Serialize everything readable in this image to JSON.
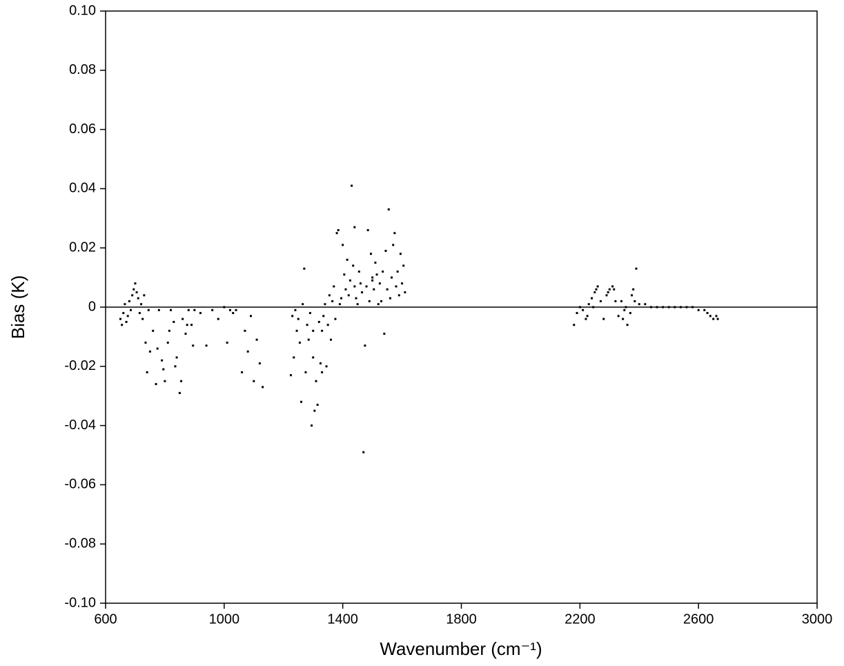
{
  "chart_data": {
    "type": "scatter",
    "x_label": "Wavenumber (cm⁻¹)",
    "y_label": "Bias (K)",
    "x": [
      650,
      655,
      660,
      665,
      670,
      675,
      680,
      685,
      690,
      695,
      700,
      705,
      710,
      715,
      720,
      725,
      730,
      735,
      740,
      745,
      750,
      760,
      770,
      780,
      790,
      800,
      810,
      820,
      830,
      840,
      850,
      860,
      870,
      880,
      890,
      900,
      920,
      940,
      960,
      980,
      1000,
      1010,
      1020,
      1030,
      1040,
      1060,
      1070,
      1080,
      1090,
      1100,
      1110,
      1120,
      1130,
      775,
      795,
      815,
      835,
      855,
      875,
      895,
      1225,
      1230,
      1235,
      1240,
      1245,
      1250,
      1255,
      1260,
      1265,
      1270,
      1275,
      1280,
      1285,
      1290,
      1295,
      1300,
      1305,
      1310,
      1315,
      1320,
      1325,
      1330,
      1335,
      1340,
      1345,
      1350,
      1355,
      1360,
      1365,
      1370,
      1375,
      1380,
      1385,
      1390,
      1395,
      1400,
      1405,
      1410,
      1415,
      1420,
      1425,
      1430,
      1435,
      1440,
      1445,
      1450,
      1455,
      1460,
      1465,
      1470,
      1475,
      1480,
      1485,
      1490,
      1495,
      1500,
      1505,
      1510,
      1515,
      1520,
      1525,
      1530,
      1535,
      1540,
      1545,
      1550,
      1555,
      1560,
      1565,
      1570,
      1575,
      1580,
      1585,
      1590,
      1595,
      1600,
      1605,
      1610,
      1440,
      1500,
      2180,
      2190,
      2200,
      2210,
      2220,
      2230,
      2240,
      2250,
      2260,
      2270,
      2280,
      2290,
      2300,
      2310,
      2320,
      2330,
      2340,
      2350,
      2360,
      2370,
      2375,
      2380,
      2385,
      2390,
      2400,
      2420,
      2440,
      2460,
      2480,
      2500,
      2520,
      2540,
      2560,
      2580,
      2600,
      2620,
      2630,
      2640,
      2650,
      2660,
      2665,
      2225,
      2245,
      2255,
      2295,
      2315,
      2345,
      2355,
      1300,
      1330
    ],
    "values": [
      -0.004,
      -0.006,
      -0.002,
      0.001,
      -0.005,
      -0.003,
      0.002,
      -0.001,
      0.004,
      0.006,
      0.008,
      0.005,
      0.003,
      -0.002,
      0.001,
      -0.004,
      0.004,
      -0.012,
      -0.022,
      -0.001,
      -0.015,
      -0.008,
      -0.026,
      -0.001,
      -0.018,
      -0.025,
      -0.012,
      -0.001,
      -0.005,
      -0.017,
      -0.029,
      -0.004,
      -0.009,
      -0.001,
      -0.006,
      -0.001,
      -0.002,
      -0.013,
      -0.001,
      -0.004,
      0,
      -0.012,
      -0.001,
      -0.002,
      -0.001,
      -0.022,
      -0.008,
      -0.015,
      -0.003,
      -0.025,
      -0.011,
      -0.019,
      -0.027,
      -0.014,
      -0.021,
      -0.008,
      -0.02,
      -0.025,
      -0.006,
      -0.013,
      -0.023,
      -0.003,
      -0.017,
      -0.001,
      -0.008,
      -0.004,
      -0.012,
      -0.032,
      0.001,
      0.013,
      -0.022,
      -0.006,
      -0.011,
      -0.002,
      -0.04,
      -0.017,
      -0.035,
      -0.025,
      -0.033,
      -0.005,
      -0.019,
      -0.008,
      -0.003,
      0.001,
      -0.02,
      -0.006,
      0.004,
      -0.011,
      0.002,
      0.007,
      -0.004,
      0.025,
      0.026,
      0.001,
      0.003,
      0.021,
      0.011,
      0.006,
      0.016,
      0.004,
      0.009,
      0.041,
      0.014,
      0.007,
      0.003,
      0.001,
      0.012,
      0.008,
      0.005,
      -0.049,
      -0.013,
      0.007,
      0.026,
      0.002,
      0.018,
      0.009,
      0.006,
      0.015,
      0.011,
      0.001,
      0.008,
      0.002,
      0.012,
      -0.009,
      0.019,
      0.006,
      0.033,
      0.003,
      0.01,
      0.021,
      0.025,
      0.007,
      0.012,
      0.004,
      0.018,
      0.008,
      0.014,
      0.005,
      0.027,
      0.01,
      -0.006,
      -0.002,
      0,
      -0.001,
      -0.004,
      0.001,
      0.003,
      0.005,
      0.007,
      0.002,
      -0.004,
      0.004,
      0.006,
      0.007,
      0.002,
      -0.003,
      0.002,
      -0.001,
      -0.006,
      -0.002,
      0.004,
      0.006,
      0.002,
      0.013,
      0.001,
      0.001,
      0,
      0,
      0,
      0,
      0,
      0,
      0,
      0,
      -0.001,
      -0.001,
      -0.002,
      -0.003,
      -0.004,
      -0.003,
      -0.004,
      -0.003,
      0,
      0.006,
      0.005,
      0.006,
      -0.004,
      0,
      -0.008,
      -0.022
    ],
    "color": "#000000",
    "xlim": [
      600,
      3000
    ],
    "xticks": [
      600,
      1000,
      1400,
      1800,
      2200,
      2600,
      3000
    ],
    "ylim": [
      -0.1,
      0.1
    ],
    "yticks": [
      {
        "value": -0.1,
        "label": "-0.10"
      },
      -0.08,
      -0.06,
      -0.04,
      -0.02,
      0,
      0.02,
      0.04,
      0.06,
      0.08,
      {
        "value": 0.1,
        "label": "0.10"
      }
    ]
  }
}
